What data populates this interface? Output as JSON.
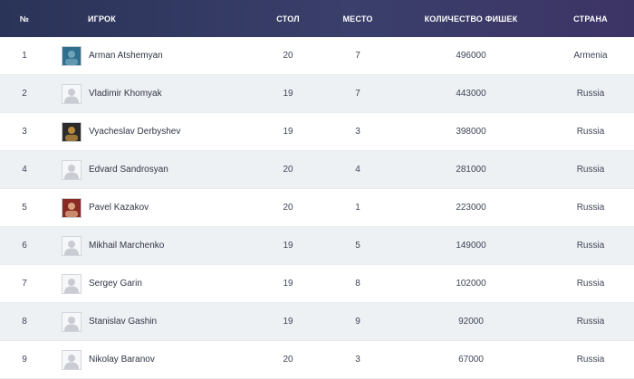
{
  "header": {
    "num": "№",
    "player": "ИГРОК",
    "table": "СТОЛ",
    "place": "МЕСТО",
    "chips": "КОЛИЧЕСТВО ФИШЕК",
    "country": "СТРАНА"
  },
  "rows": [
    {
      "num": "1",
      "name": "Arman Atshemyan",
      "table": "20",
      "place": "7",
      "chips": "496000",
      "country": "Armenia",
      "avatar": "photo",
      "colors": [
        "#2e6f8f",
        "#6fa3b8"
      ]
    },
    {
      "num": "2",
      "name": "Vladimir Khomyak",
      "table": "19",
      "place": "7",
      "chips": "443000",
      "country": "Russia",
      "avatar": "placeholder"
    },
    {
      "num": "3",
      "name": "Vyacheslav Derbyshev",
      "table": "19",
      "place": "3",
      "chips": "398000",
      "country": "Russia",
      "avatar": "photo",
      "colors": [
        "#2b2b2b",
        "#b88a3c"
      ]
    },
    {
      "num": "4",
      "name": "Edvard Sandrosyan",
      "table": "20",
      "place": "4",
      "chips": "281000",
      "country": "Russia",
      "avatar": "placeholder"
    },
    {
      "num": "5",
      "name": "Pavel Kazakov",
      "table": "20",
      "place": "1",
      "chips": "223000",
      "country": "Russia",
      "avatar": "photo",
      "colors": [
        "#8a2a24",
        "#d9a27e"
      ]
    },
    {
      "num": "6",
      "name": "Mikhail Marchenko",
      "table": "19",
      "place": "5",
      "chips": "149000",
      "country": "Russia",
      "avatar": "placeholder"
    },
    {
      "num": "7",
      "name": "Sergey Garin",
      "table": "19",
      "place": "8",
      "chips": "102000",
      "country": "Russia",
      "avatar": "placeholder"
    },
    {
      "num": "8",
      "name": "Stanislav Gashin",
      "table": "19",
      "place": "9",
      "chips": "92000",
      "country": "Russia",
      "avatar": "placeholder"
    },
    {
      "num": "9",
      "name": "Nikolay Baranov",
      "table": "20",
      "place": "3",
      "chips": "67000",
      "country": "Russia",
      "avatar": "placeholder"
    }
  ]
}
